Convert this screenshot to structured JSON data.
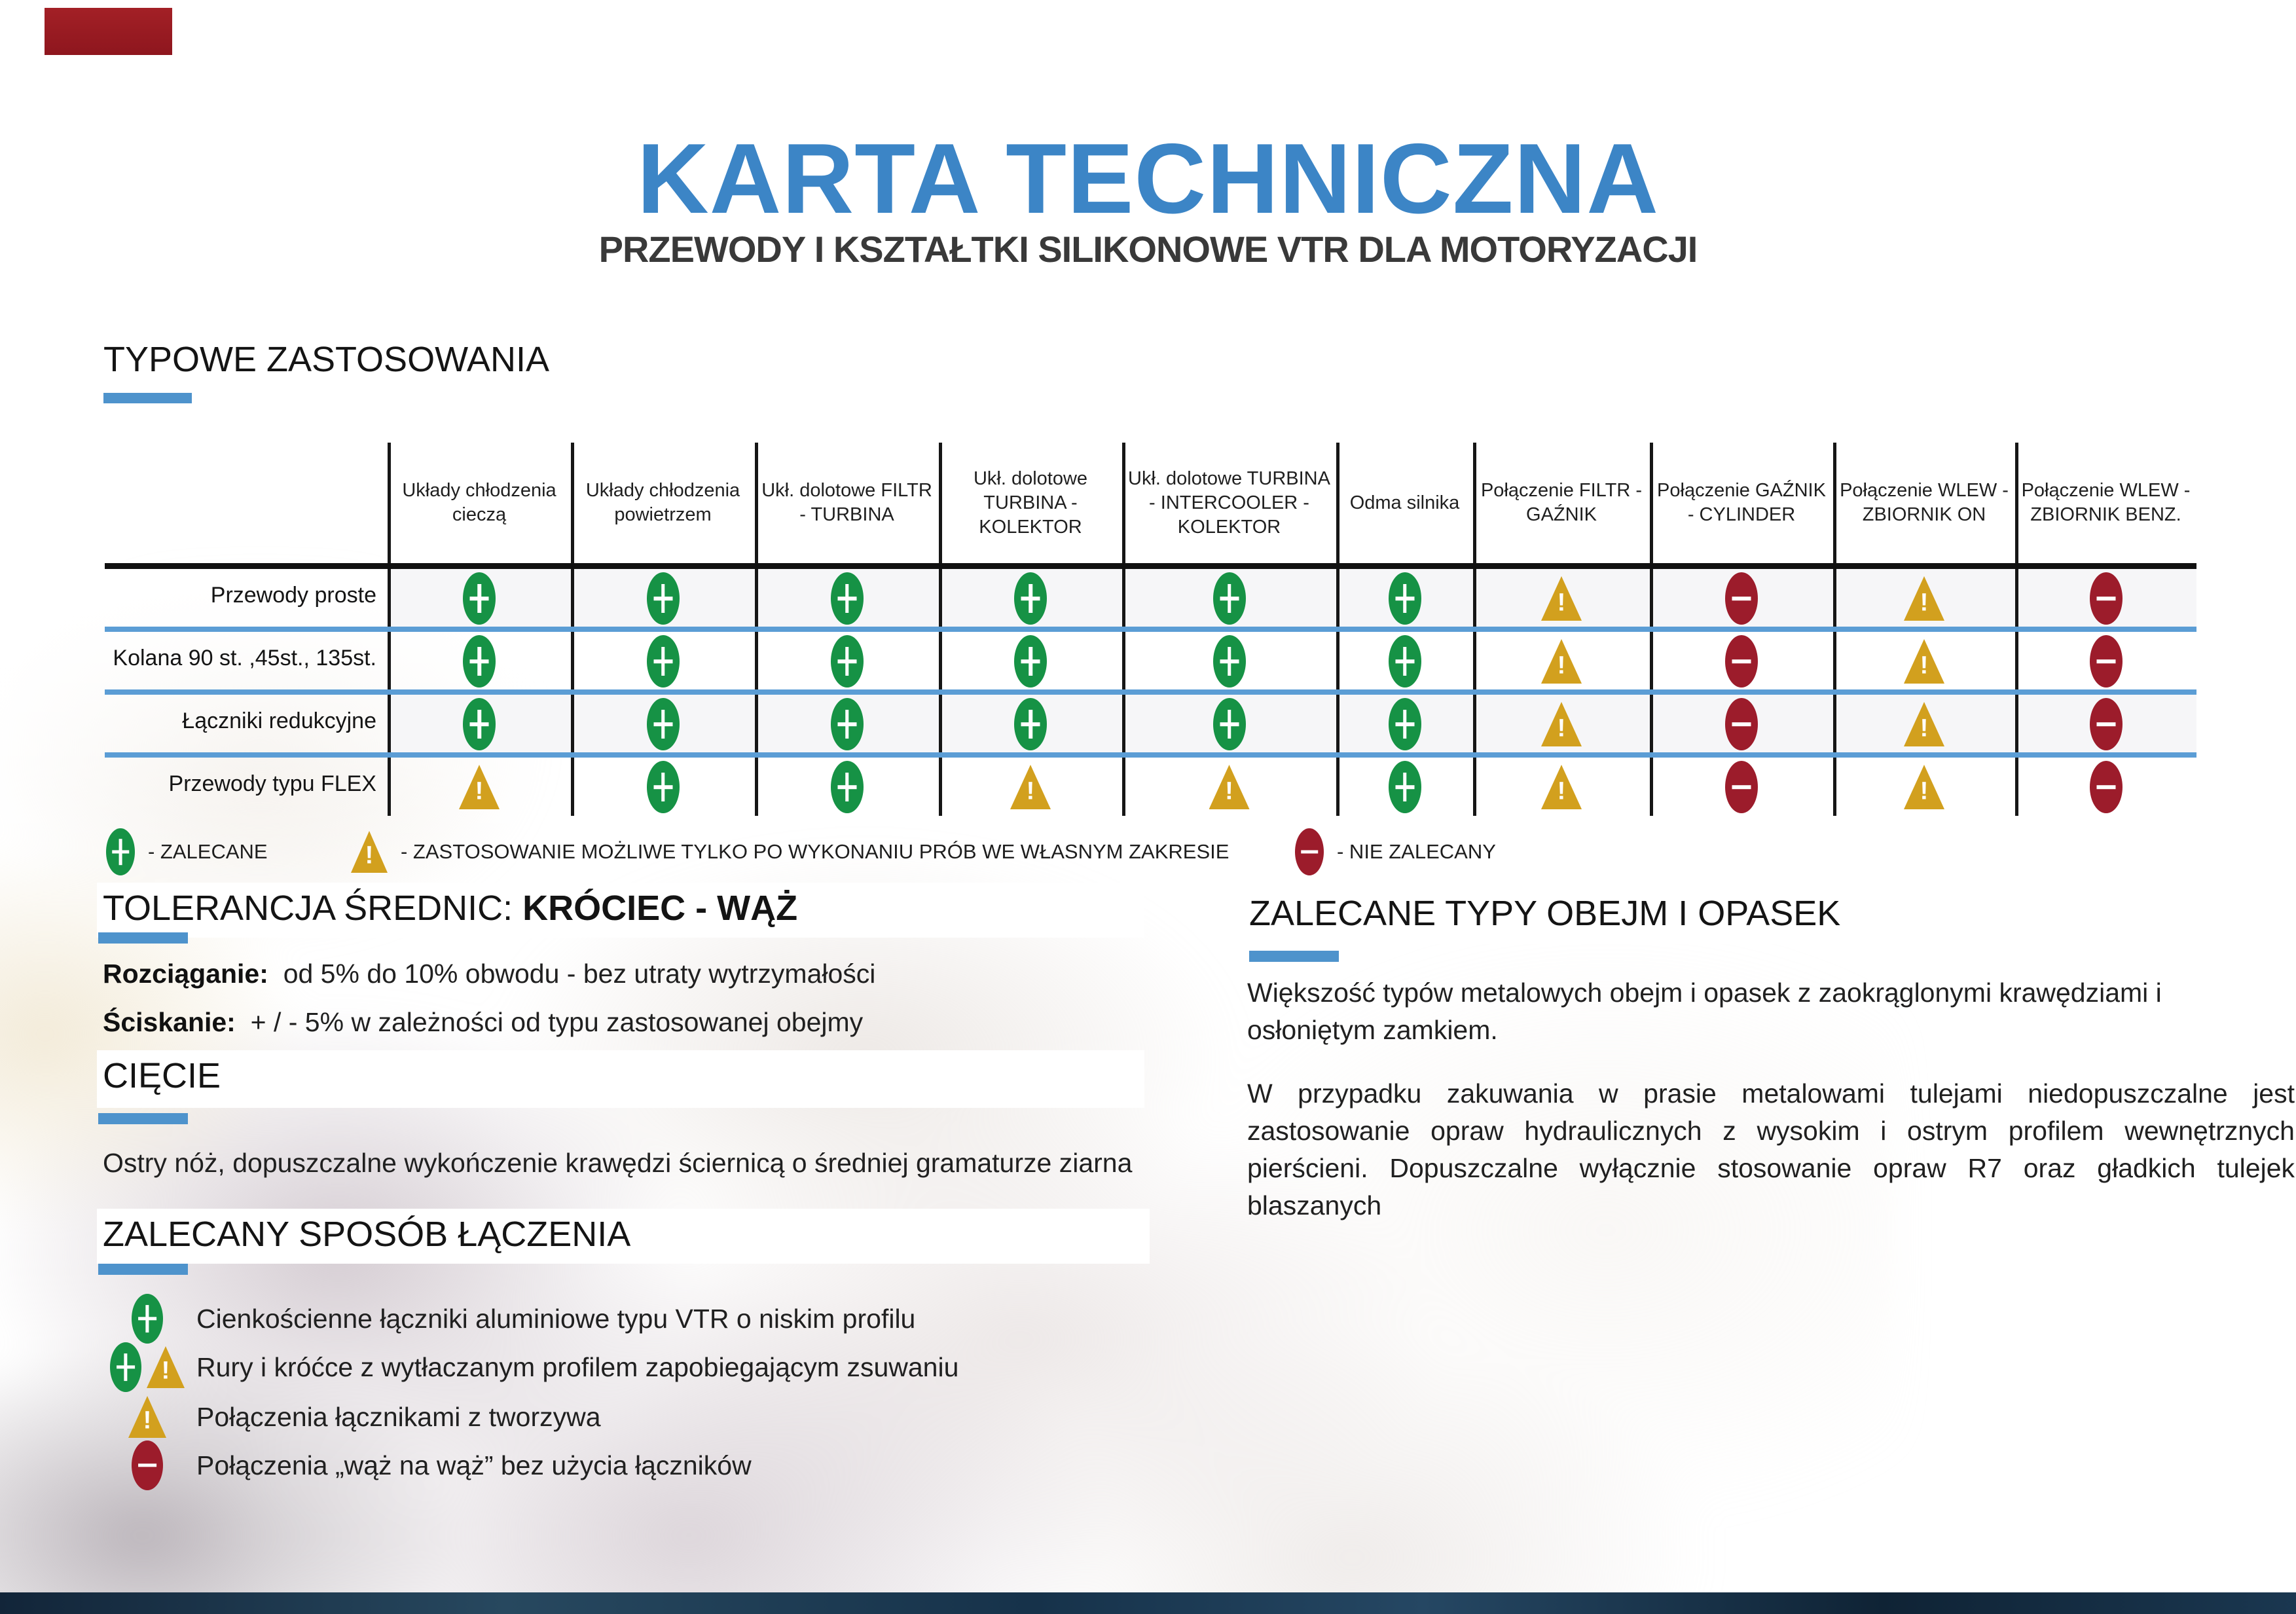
{
  "header": {
    "title": "KARTA TECHNICZNA",
    "subtitle": "PRZEWODY I KSZTAŁTKI SILIKONOWE VTR DLA MOTORYZACJI"
  },
  "colors": {
    "accent_blue": "#3c85c6",
    "bar_blue": "#4e93cc",
    "separator_blue": "#5b9dd5",
    "green": "#169245",
    "gold": "#d2a01e",
    "dark_red": "#9c1c2b",
    "logo_red": "#9a1c22",
    "footer_navy": "#16283c"
  },
  "applications_table": {
    "section_title": "TYPOWE ZASTOSOWANIA",
    "columns": [
      "Układy chłodzenia cieczą",
      "Układy chłodzenia powietrzem",
      "Ukł. dolotowe FILTR - TURBINA",
      "Ukł. dolotowe TURBINA - KOLEKTOR",
      "Ukł. dolotowe TURBINA - INTERCOOLER - KOLEKTOR",
      "Odma silnika",
      "Połączenie FILTR - GAŹNIK",
      "Połączenie GAŹNIK - CYLINDER",
      "Połączenie WLEW - ZBIORNIK ON",
      "Połączenie WLEW - ZBIORNIK BENZ."
    ],
    "rows": [
      {
        "label": "Przewody proste",
        "cells": [
          "plus",
          "plus",
          "plus",
          "plus",
          "plus",
          "plus",
          "warning",
          "minus",
          "warning",
          "minus"
        ]
      },
      {
        "label": "Kolana 90 st. ,45st., 135st.",
        "cells": [
          "plus",
          "plus",
          "plus",
          "plus",
          "plus",
          "plus",
          "warning",
          "minus",
          "warning",
          "minus"
        ]
      },
      {
        "label": "Łączniki redukcyjne",
        "cells": [
          "plus",
          "plus",
          "plus",
          "plus",
          "plus",
          "plus",
          "warning",
          "minus",
          "warning",
          "minus"
        ]
      },
      {
        "label": "Przewody typu FLEX",
        "cells": [
          "warning",
          "plus",
          "plus",
          "warning",
          "warning",
          "plus",
          "warning",
          "minus",
          "warning",
          "minus"
        ]
      }
    ]
  },
  "legend": {
    "plus_label": "- ZALECANE",
    "warning_label": "- ZASTOSOWANIE MOŻLIWE TYLKO PO WYKONANIU PRÓB WE WŁASNYM ZAKRESIE",
    "minus_label": "- NIE ZALECANY"
  },
  "tolerance": {
    "title_normal": "TOLERANCJA ŚREDNIC: ",
    "title_bold": "KRÓCIEC - WĄŻ",
    "line1_label": "Rozciąganie:",
    "line1_text": "od 5% do 10% obwodu - bez utraty wytrzymałości",
    "line2_label": "Ściskanie:",
    "line2_text": "+ / -  5%  w zależności od typu zastosowanej obejmy"
  },
  "cutting": {
    "title": "CIĘCIE",
    "text": "Ostry nóż, dopuszczalne wykończenie krawędzi ściernicą  o średniej gramaturze ziarna"
  },
  "joining": {
    "title": "ZALECANY SPOSÓB ŁĄCZENIA",
    "items": [
      {
        "icons": [
          "plus"
        ],
        "text": "Cienkościenne łączniki aluminiowe typu VTR o niskim profilu"
      },
      {
        "icons": [
          "plus",
          "warning"
        ],
        "text": "Rury i króćce z wytłaczanym profilem zapobiegającym zsuwaniu"
      },
      {
        "icons": [
          "warning"
        ],
        "text": "Połączenia łącznikami z tworzywa"
      },
      {
        "icons": [
          "minus"
        ],
        "text": "Połączenia „wąż na wąż” bez użycia łączników"
      }
    ]
  },
  "clamps": {
    "title": "ZALECANE TYPY OBEJM I OPASEK",
    "paragraph1": "Większość typów metalowych obejm i opasek  z zaokrąglonymi krawędziami i osłoniętym zamkiem.",
    "paragraph2": "W przypadku zakuwania w prasie metalowami tulejami niedopuszczalne jest zastosowanie opraw hydraulicznych z wysokim i ostrym profilem wewnętrznych pierścieni. Dopuszczalne wyłącznie stosowanie opraw R7 oraz gładkich tulejek blaszanych"
  }
}
